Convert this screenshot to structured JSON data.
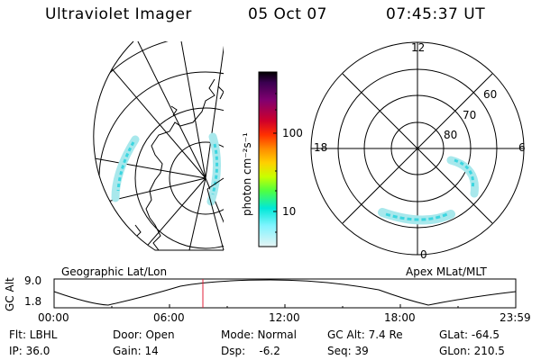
{
  "header": {
    "instrument": "Ultraviolet Imager",
    "date": "05 Oct 07",
    "time": "07:45:37 UT"
  },
  "colorbar": {
    "unit_label": "photon cm⁻²s⁻¹",
    "ticks": [
      "100",
      "10"
    ],
    "colors": [
      "#000000",
      "#3a0050",
      "#800070",
      "#d0002a",
      "#ff3000",
      "#ff8c00",
      "#ffd000",
      "#c8ff00",
      "#50ff40",
      "#00e8d8",
      "#80f4ff",
      "#e6f4f4"
    ]
  },
  "left_map": {
    "caption": "Geographic Lat/Lon"
  },
  "right_map": {
    "caption": "Apex MLat/MLT",
    "mlt_labels": {
      "top": "12",
      "left": "18",
      "right": "6",
      "bottom": "0"
    },
    "lat_labels": [
      "60",
      "70",
      "80"
    ]
  },
  "altitude_panel": {
    "axis_label": "GC Alt",
    "y_ticks": [
      "9.0",
      "1.8"
    ],
    "x_ticks": [
      "00:00",
      "06:00",
      "12:00",
      "18:00",
      "23:59"
    ],
    "marker_time": "07:45"
  },
  "info": {
    "filter": "Flt: LBHL",
    "door": "Door: Open",
    "mode": "Mode: Normal",
    "gc_alt": "GC Alt: 7.4 Re",
    "glat": "GLat: -64.5",
    "ip": "IP: 36.0",
    "gain": "Gain: 14",
    "dsp": "Dsp:    -6.2",
    "seq": "Seq: 39",
    "glon": "GLon: 210.5"
  },
  "colors": {
    "aurora": "#3cd6e0",
    "aurora_light": "#a8e8ec",
    "marker": "#e0203a"
  }
}
